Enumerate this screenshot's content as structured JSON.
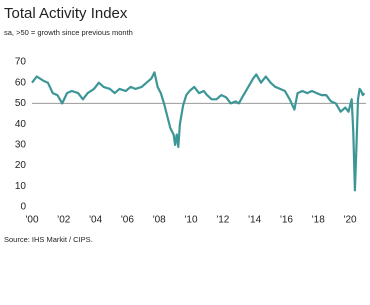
{
  "chart_data": {
    "type": "line",
    "title": "Total Activity Index",
    "subtitle": "sa, >50 = growth since previous month",
    "source": "Source: IHS Markit / CIPS.",
    "x": [
      2000.0,
      2000.3,
      2000.7,
      2001.0,
      2001.3,
      2001.6,
      2001.9,
      2002.2,
      2002.5,
      2002.9,
      2003.2,
      2003.5,
      2003.9,
      2004.2,
      2004.5,
      2004.9,
      2005.2,
      2005.5,
      2005.9,
      2006.2,
      2006.5,
      2006.9,
      2007.2,
      2007.5,
      2007.7,
      2007.9,
      2008.1,
      2008.3,
      2008.5,
      2008.7,
      2008.9,
      2009.0,
      2009.1,
      2009.2,
      2009.3,
      2009.5,
      2009.7,
      2009.9,
      2010.2,
      2010.5,
      2010.8,
      2011.0,
      2011.3,
      2011.6,
      2011.9,
      2012.2,
      2012.5,
      2012.8,
      2013.0,
      2013.3,
      2013.6,
      2013.9,
      2014.1,
      2014.4,
      2014.7,
      2015.0,
      2015.3,
      2015.6,
      2015.9,
      2016.2,
      2016.5,
      2016.7,
      2017.0,
      2017.3,
      2017.6,
      2017.9,
      2018.2,
      2018.5,
      2018.8,
      2019.1,
      2019.4,
      2019.7,
      2019.9,
      2020.1,
      2020.2,
      2020.3,
      2020.4,
      2020.5,
      2020.6,
      2020.7,
      2020.8,
      2020.9
    ],
    "series": [
      {
        "name": "Total Activity Index",
        "color": "#3d9696",
        "values": [
          60,
          63,
          61,
          60,
          55,
          54,
          50,
          55,
          56,
          55,
          52,
          55,
          57,
          60,
          58,
          57,
          55,
          57,
          56,
          58,
          57,
          58,
          60,
          62,
          65,
          58,
          55,
          50,
          44,
          38,
          35,
          30,
          35,
          29,
          40,
          49,
          54,
          56,
          58,
          55,
          56,
          54,
          52,
          52,
          54,
          53,
          50,
          51,
          50,
          54,
          58,
          62,
          64,
          60,
          63,
          60,
          58,
          57,
          56,
          52,
          47,
          55,
          56,
          55,
          56,
          55,
          54,
          54,
          51,
          50,
          46,
          48,
          46,
          52,
          36,
          8,
          30,
          52,
          57,
          56,
          54,
          55
        ]
      }
    ],
    "xlim": [
      2000,
      2021
    ],
    "xticks": [
      {
        "value": 2000,
        "label": "'00"
      },
      {
        "value": 2002,
        "label": "'02"
      },
      {
        "value": 2004,
        "label": "'04"
      },
      {
        "value": 2006,
        "label": "'06"
      },
      {
        "value": 2008,
        "label": "'08"
      },
      {
        "value": 2010,
        "label": "'10"
      },
      {
        "value": 2012,
        "label": "'12"
      },
      {
        "value": 2014,
        "label": "'14"
      },
      {
        "value": 2016,
        "label": "'16"
      },
      {
        "value": 2018,
        "label": "'18"
      },
      {
        "value": 2020,
        "label": "'20"
      }
    ],
    "ylim": [
      0,
      70
    ],
    "yticks": [
      0,
      10,
      20,
      30,
      40,
      50,
      60,
      70
    ],
    "reference_line": 50
  }
}
